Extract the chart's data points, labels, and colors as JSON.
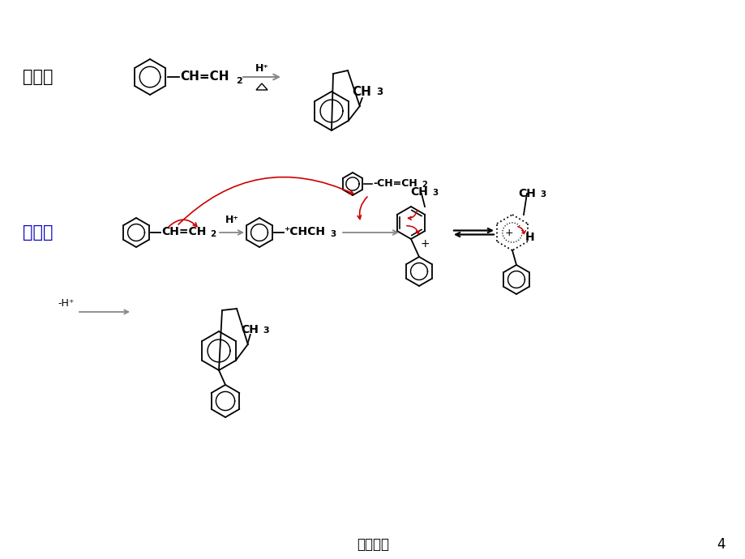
{
  "bg": "#ffffff",
  "black": "#000000",
  "red": "#cc0000",
  "blue": "#0000bb",
  "gray": "#888888",
  "footer": "向上教学",
  "page": "4",
  "liru": "例如：",
  "jieda": "解答："
}
